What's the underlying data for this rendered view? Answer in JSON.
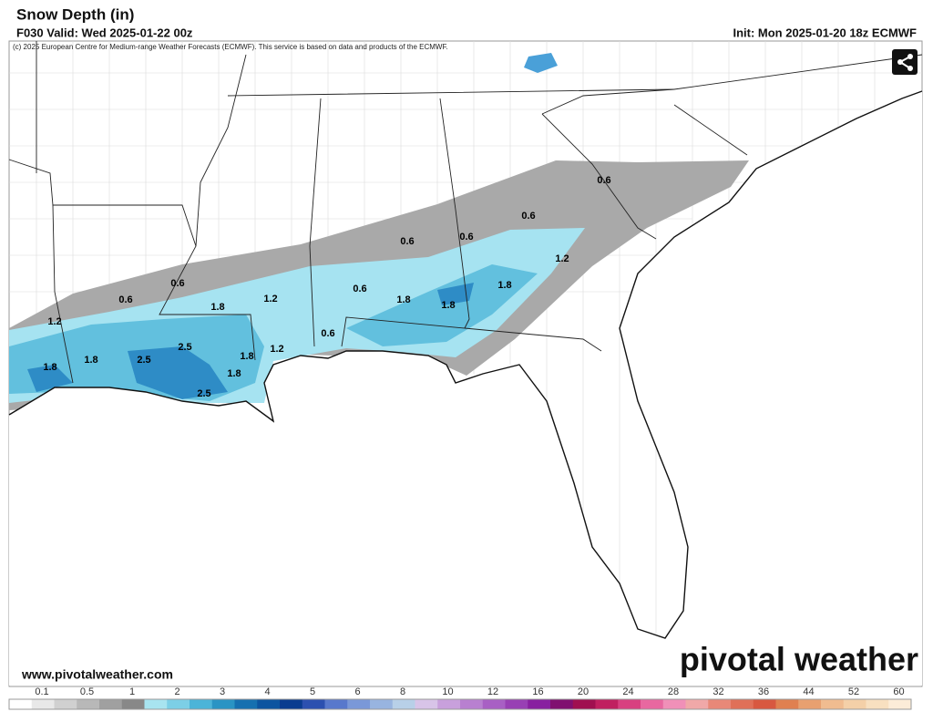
{
  "header": {
    "title": "Snow Depth (in)",
    "valid": "F030 Valid: Wed 2025-01-22 00z",
    "init": "Init: Mon 2025-01-20 18z ECMWF",
    "credit": "(c) 2025 European Centre for Medium-range Weather Forecasts (ECMWF). This service is based on data and products of the ECMWF."
  },
  "map": {
    "contour_labels": [
      "0.6",
      "0.6",
      "0.6",
      "0.6",
      "1.2",
      "1.8",
      "0.6",
      "1.8",
      "1.8",
      "1.2",
      "1.8",
      "0.6",
      "0.6",
      "1.2",
      "1.8",
      "2.5",
      "2.5",
      "1.8",
      "1.8",
      "1.8",
      "2.5",
      "1.2",
      "0.6"
    ]
  },
  "footer": {
    "url": "www.pivotalweather.com",
    "logo": "pivotal weather"
  },
  "colorbar": {
    "ticks": [
      0.1,
      0.5,
      1,
      2,
      3,
      4,
      5,
      6,
      8,
      10,
      12,
      16,
      20,
      24,
      28,
      32,
      36,
      44,
      52,
      60
    ],
    "colors": [
      "#ffffff",
      "#e8e8e8",
      "#d0d0d0",
      "#b8b8b8",
      "#a0a0a0",
      "#888888",
      "#a8e4f0",
      "#7ccfe6",
      "#4cb4d8",
      "#2a94c4",
      "#1670b0",
      "#0c54a0",
      "#0a3c90",
      "#2c50b0",
      "#5878cc",
      "#7a98d8",
      "#98b4e0",
      "#b8d0e8",
      "#d8c4e8",
      "#c8a0dc",
      "#b880d0",
      "#a860c4",
      "#9840b4",
      "#8820a0",
      "#801070",
      "#a01050",
      "#c02060",
      "#d84080",
      "#e868a0",
      "#f090b8",
      "#f0a8a8",
      "#e88878",
      "#e07058",
      "#d85840",
      "#e08050",
      "#e8a070",
      "#f0bc90",
      "#f4d0a8",
      "#f8e0c0",
      "#fcecd8"
    ]
  }
}
